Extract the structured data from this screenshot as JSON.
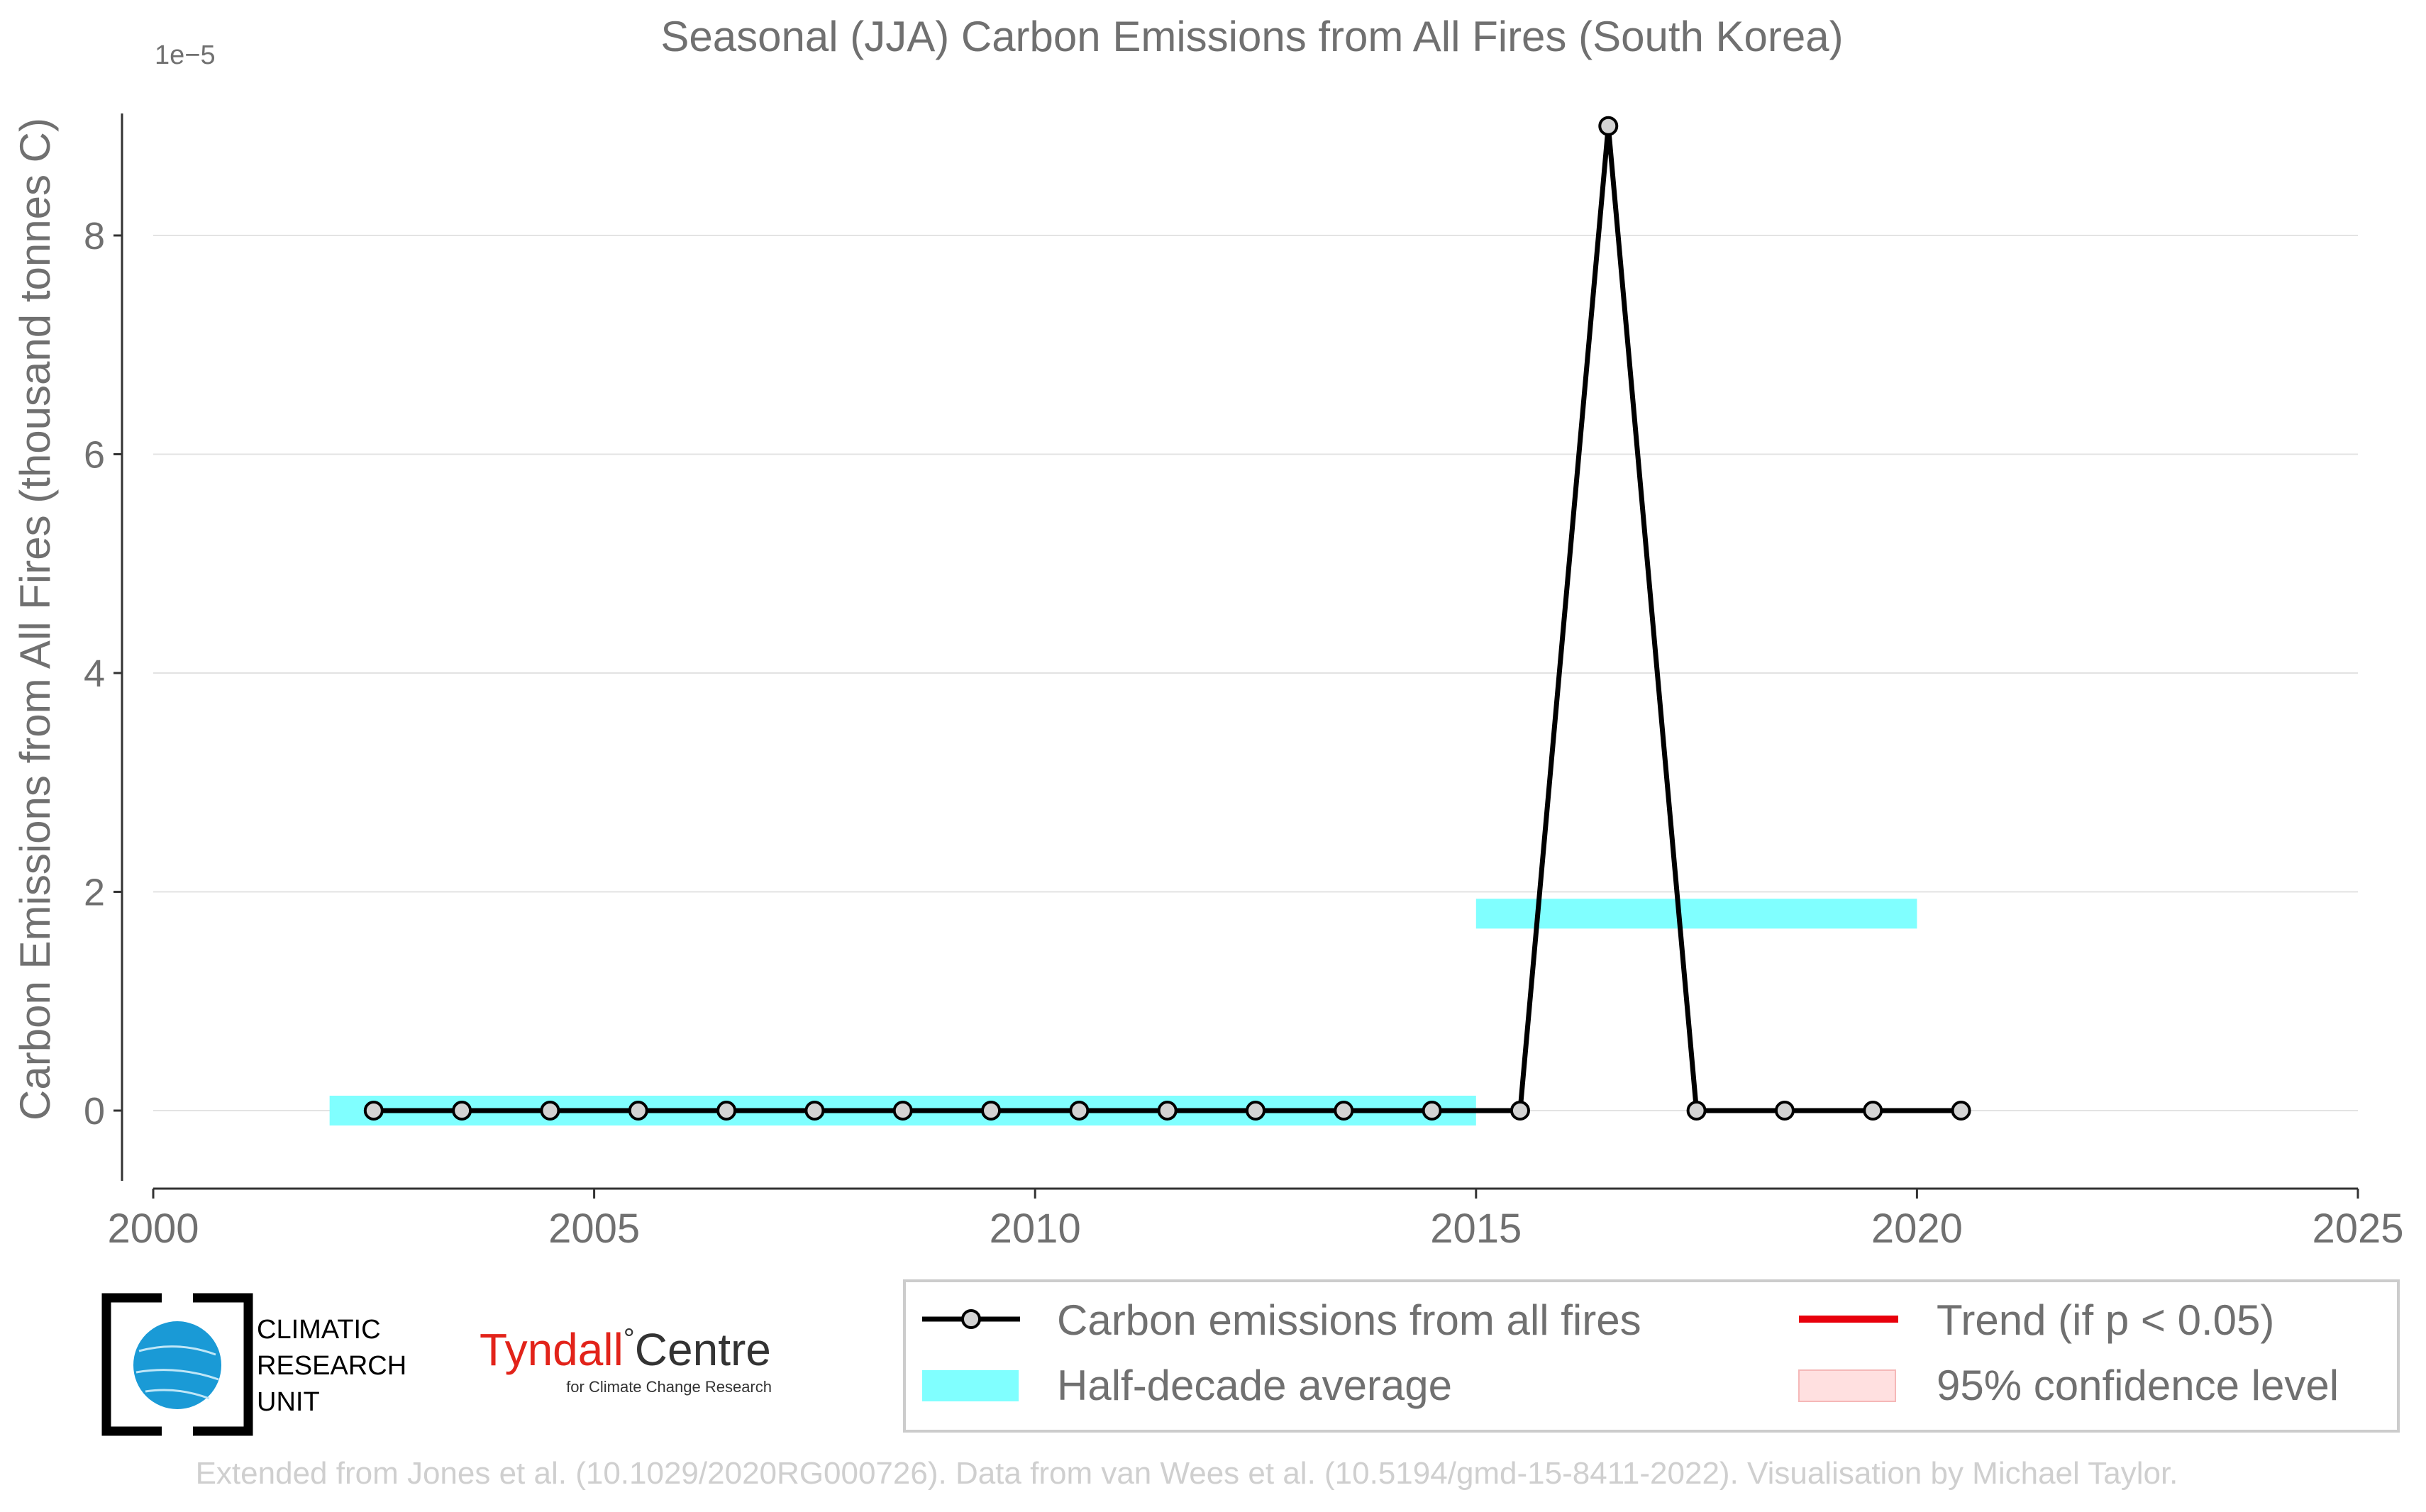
{
  "chart_data": {
    "type": "line",
    "title": "Seasonal (JJA) Carbon Emissions from All Fires (South Korea)",
    "ylabel": "Carbon Emissions from All Fires (thousand tonnes C)",
    "xlabel": "",
    "y_offset_label": "1e−5",
    "xlim": [
      2000,
      2025
    ],
    "ylim": [
      -0.75,
      9.0
    ],
    "y_scale_note": "values shown in units of 1e-5",
    "x_ticks": [
      2000,
      2005,
      2010,
      2015,
      2020,
      2025
    ],
    "x_tick_labels": [
      "2000",
      "2005",
      "2010",
      "2015",
      "2020",
      "2025"
    ],
    "y_ticks": [
      0,
      2,
      4,
      6,
      8
    ],
    "y_tick_labels": [
      "0",
      "2",
      "4",
      "6",
      "8"
    ],
    "grid": "horizontal",
    "series": [
      {
        "name": "Carbon emissions from all fires",
        "color": "#000000",
        "x": [
          2002.5,
          2003.5,
          2004.5,
          2005.5,
          2006.5,
          2007.5,
          2008.5,
          2009.5,
          2010.5,
          2011.5,
          2012.5,
          2013.5,
          2014.5,
          2015.5,
          2016.5,
          2017.5,
          2018.5,
          2019.5,
          2020.5
        ],
        "values": [
          0,
          0,
          0,
          0,
          0,
          0,
          0,
          0,
          0,
          0,
          0,
          0,
          0,
          0,
          9.0,
          0,
          0,
          0,
          0
        ]
      }
    ],
    "half_decade_average": {
      "name": "Half-decade average",
      "color": "#80ffff",
      "segments": [
        {
          "x_start": 2002,
          "x_end": 2015,
          "value": 0
        },
        {
          "x_start": 2015,
          "x_end": 2020,
          "value": 1.8
        }
      ]
    },
    "legend": {
      "placement": "bottom-right",
      "entries": [
        {
          "label": "Carbon emissions from all fires",
          "kind": "line-marker",
          "color": "#000000"
        },
        {
          "label": "Trend (if p < 0.05)",
          "kind": "line",
          "color": "#e8000b"
        },
        {
          "label": "Half-decade average",
          "kind": "patch",
          "color": "#80ffff"
        },
        {
          "label": "95% confidence level",
          "kind": "patch",
          "color": "#ffe0e0"
        }
      ]
    }
  },
  "logos": {
    "cru_line1": "CLIMATIC",
    "cru_line2": "RESEARCH",
    "cru_line3": "UNIT",
    "tyndall_name": "Tyndall",
    "tyndall_degree": "°",
    "tyndall_centre": "Centre",
    "tyndall_sub": "for Climate Change Research"
  },
  "footer": {
    "credit": "Extended from Jones et al. (10.1029/2020RG000726). Data from van Wees et al. (10.5194/gmd-15-8411-2022). Visualisation by Michael Taylor."
  }
}
